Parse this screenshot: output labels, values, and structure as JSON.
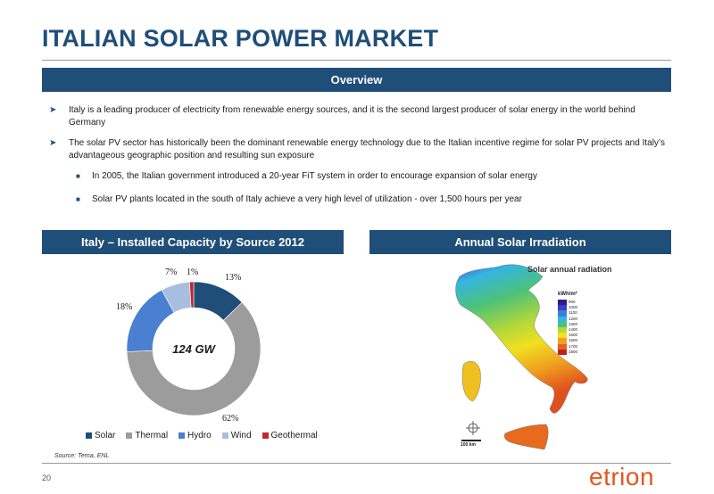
{
  "title": "ITALIAN SOLAR POWER MARKET",
  "overview": {
    "heading": "Overview",
    "bullets": [
      "Italy is a leading producer of electricity from renewable energy sources, and it is the second largest producer of solar energy in the world behind Germany",
      "The solar PV sector has historically been the dominant renewable energy technology due to the Italian incentive regime for solar PV projects and Italy’s advantageous geographic position and resulting sun exposure"
    ],
    "sub_bullets": [
      "In 2005, the Italian government introduced a 20-year FiT system in order to encourage expansion of solar energy",
      "Solar PV plants located in the south of Italy achieve a very high level of utilization - over 1,500 hours per year"
    ]
  },
  "capacity": {
    "heading": "Italy – Installed Capacity by Source 2012",
    "center_label": "124 GW",
    "source": "Source: Terna, ENL"
  },
  "irradiation": {
    "heading": "Annual Solar Irradiation",
    "map_title": "Solar annual radiation",
    "unit": "kWh/m²",
    "scale_values": [
      "900",
      "1000",
      "1100",
      "1200",
      "1300",
      "1400",
      "1500",
      "1600",
      "1700",
      "1800"
    ],
    "scale_colors": [
      "#2c1b8c",
      "#3a3fc4",
      "#3f7fdc",
      "#35b5e0",
      "#4cc27a",
      "#b4d83a",
      "#f0e020",
      "#f0a020",
      "#e86020",
      "#c02020"
    ],
    "km_label": "100 km"
  },
  "chart_data": {
    "type": "pie",
    "variant": "donut",
    "categories": [
      "Solar",
      "Thermal",
      "Hydro",
      "Wind",
      "Geothermal"
    ],
    "values": [
      13,
      62,
      18,
      7,
      1
    ],
    "labels": [
      "13%",
      "62%",
      "18%",
      "7%",
      "1%"
    ],
    "colors": [
      "#1f4e79",
      "#9c9c9c",
      "#4a7fd1",
      "#a8bedf",
      "#c0282c"
    ],
    "legend_position": "bottom"
  },
  "page_number": "20",
  "logo_text": "etrion"
}
